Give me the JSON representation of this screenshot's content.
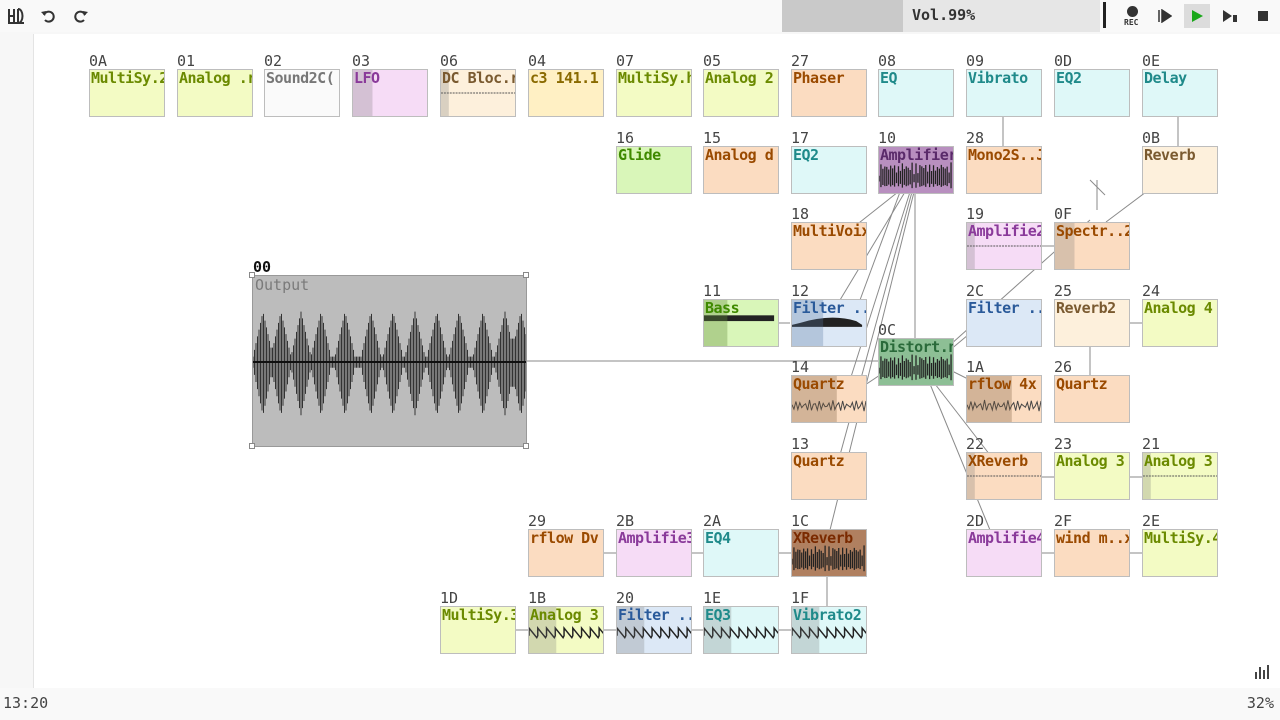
{
  "toolbar": {
    "menu_icon": "app-logo-icon",
    "undo_icon": "undo-icon",
    "redo_icon": "redo-icon",
    "volume_label": "Vol.99%",
    "volume_level": 0.38,
    "rec_label": "REC",
    "play_icon": "play-icon",
    "play_pattern_icon": "play-pattern-icon",
    "stop_icon": "stop-icon"
  },
  "side_tools": {
    "menu_icon": "hamburger-icon",
    "link_icon": "link-mode-icon",
    "grid_icon": "grid-icon",
    "levels_icon": "levels-icon"
  },
  "output": {
    "id": "00",
    "label": "Output"
  },
  "modules": [
    {
      "id": "0A",
      "name": "MultiSy.2",
      "type": "synth"
    },
    {
      "id": "01",
      "name": "Analog .r",
      "type": "synth"
    },
    {
      "id": "02",
      "name": "Sound2C(",
      "type": "white"
    },
    {
      "id": "03",
      "name": "LFO",
      "type": "pink"
    },
    {
      "id": "06",
      "name": "DC Bloc.r",
      "type": "peach"
    },
    {
      "id": "04",
      "name": "c3 141.1",
      "type": "yellow"
    },
    {
      "id": "07",
      "name": "MultiSy.h",
      "type": "synth"
    },
    {
      "id": "05",
      "name": "Analog 2",
      "type": "synth"
    },
    {
      "id": "27",
      "name": "Phaser",
      "type": "orange"
    },
    {
      "id": "08",
      "name": "EQ",
      "type": "cyan"
    },
    {
      "id": "09",
      "name": "Vibrato",
      "type": "cyan"
    },
    {
      "id": "0D",
      "name": "EQ2",
      "type": "cyan"
    },
    {
      "id": "0E",
      "name": "Delay",
      "type": "cyan"
    },
    {
      "id": "16",
      "name": "Glide",
      "type": "green"
    },
    {
      "id": "15",
      "name": "Analog d",
      "type": "orange"
    },
    {
      "id": "17",
      "name": "EQ2",
      "type": "cyan"
    },
    {
      "id": "10",
      "name": "Amplifier",
      "type": "amp"
    },
    {
      "id": "28",
      "name": "Mono2S..J",
      "type": "orange"
    },
    {
      "id": "0B",
      "name": "Reverb",
      "type": "peach"
    },
    {
      "id": "18",
      "name": "MultiVoix",
      "type": "orange"
    },
    {
      "id": "19",
      "name": "Amplifie2",
      "type": "pink"
    },
    {
      "id": "0F",
      "name": "Spectr..2",
      "type": "orange"
    },
    {
      "id": "11",
      "name": "Bass",
      "type": "green"
    },
    {
      "id": "12",
      "name": "Filter ..o",
      "type": "blue"
    },
    {
      "id": "0C",
      "name": "Distort.n",
      "type": "distort"
    },
    {
      "id": "2C",
      "name": "Filter ..3",
      "type": "blue"
    },
    {
      "id": "25",
      "name": "Reverb2",
      "type": "peach"
    },
    {
      "id": "24",
      "name": "Analog 4",
      "type": "synth"
    },
    {
      "id": "14",
      "name": "Quartz",
      "type": "orange"
    },
    {
      "id": "1A",
      "name": "rflow 4x",
      "type": "orange"
    },
    {
      "id": "26",
      "name": "Quartz",
      "type": "orange"
    },
    {
      "id": "13",
      "name": "Quartz",
      "type": "orange"
    },
    {
      "id": "22",
      "name": "XReverb",
      "type": "orange"
    },
    {
      "id": "23",
      "name": "Analog 3",
      "type": "synth"
    },
    {
      "id": "21",
      "name": "Analog 3",
      "type": "synth"
    },
    {
      "id": "29",
      "name": "rflow Dv",
      "type": "orange"
    },
    {
      "id": "2B",
      "name": "Amplifie3",
      "type": "pink"
    },
    {
      "id": "2A",
      "name": "EQ4",
      "type": "cyan"
    },
    {
      "id": "1C",
      "name": "XReverb",
      "type": "xrev"
    },
    {
      "id": "2D",
      "name": "Amplifie4",
      "type": "pink"
    },
    {
      "id": "2F",
      "name": "wind m..x",
      "type": "orange"
    },
    {
      "id": "2E",
      "name": "MultiSy.4",
      "type": "synth"
    },
    {
      "id": "1D",
      "name": "MultiSy.3",
      "type": "synth"
    },
    {
      "id": "1B",
      "name": "Analog 3",
      "type": "synth"
    },
    {
      "id": "20",
      "name": "Filter ..2",
      "type": "blue"
    },
    {
      "id": "1E",
      "name": "EQ3",
      "type": "cyan"
    },
    {
      "id": "1F",
      "name": "Vibrato2",
      "type": "cyan"
    }
  ],
  "status": {
    "clock": "13:20",
    "zoom": "32%"
  },
  "colors": {
    "synth": "#f3fbc4",
    "green": "#d9f6b9",
    "orange": "#fbdcc1",
    "peach": "#fdf0dc",
    "cyan": "#dff8f8",
    "pink": "#f6dcf6",
    "blue": "#dce8f6",
    "yellow": "#fff0c4",
    "white": "#fafafa"
  }
}
